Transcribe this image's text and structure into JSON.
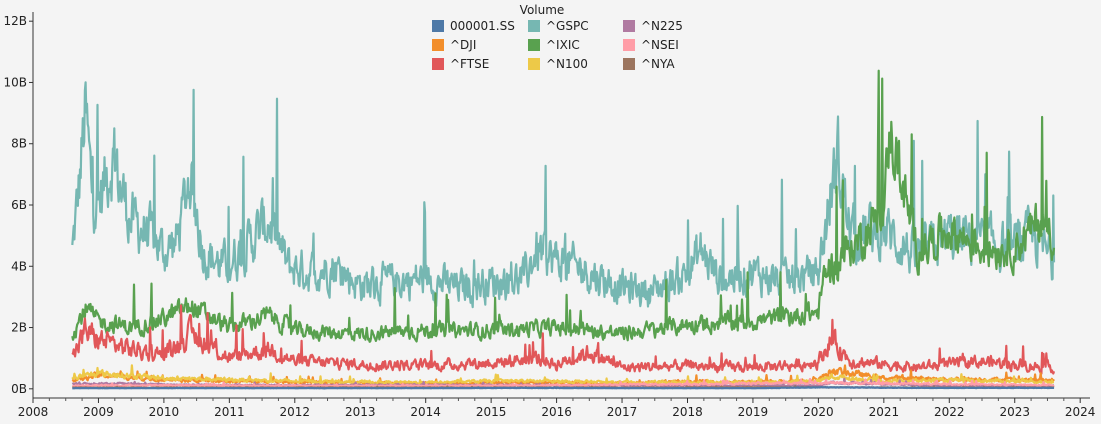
{
  "chart_data": {
    "type": "line",
    "title": "",
    "xlabel": "",
    "ylabel": "",
    "x_ticks": [
      "2008",
      "2009",
      "2010",
      "2011",
      "2012",
      "2013",
      "2014",
      "2015",
      "2016",
      "2017",
      "2018",
      "2019",
      "2020",
      "2021",
      "2022",
      "2023",
      "2024"
    ],
    "xlim": [
      2008.0,
      2024.15
    ],
    "y_ticks": [
      {
        "value": 0,
        "label": "0B"
      },
      {
        "value": 2,
        "label": "2B"
      },
      {
        "value": 4,
        "label": "4B"
      },
      {
        "value": 6,
        "label": "6B"
      },
      {
        "value": 8,
        "label": "8B"
      },
      {
        "value": 10,
        "label": "10B"
      },
      {
        "value": 12,
        "label": "12B"
      }
    ],
    "ylim": [
      -0.3,
      12.3
    ],
    "grid": false,
    "legend": {
      "title": "Volume",
      "placement": "top-center",
      "columns": 3
    },
    "series": [
      {
        "name": "000001.SS",
        "color": "#4e79a7",
        "x": [
          2008.6,
          2010,
          2012,
          2014,
          2015.5,
          2017,
          2019,
          2020.2,
          2021.5,
          2023.6
        ],
        "values": [
          0.02,
          0.02,
          0.02,
          0.02,
          0.03,
          0.02,
          0.02,
          0.05,
          0.03,
          0.03
        ]
      },
      {
        "name": "^DJI",
        "color": "#f28e2b",
        "x": [
          2008.6,
          2009,
          2010,
          2011,
          2012,
          2013,
          2014,
          2015,
          2016,
          2017,
          2018,
          2019,
          2020,
          2020.2,
          2021,
          2022,
          2023,
          2023.6
        ],
        "values": [
          0.25,
          0.45,
          0.3,
          0.25,
          0.22,
          0.2,
          0.18,
          0.2,
          0.22,
          0.18,
          0.24,
          0.22,
          0.3,
          0.6,
          0.35,
          0.32,
          0.3,
          0.28
        ]
      },
      {
        "name": "^FTSE",
        "color": "#e15759",
        "x": [
          2008.6,
          2008.8,
          2009,
          2009.5,
          2010,
          2010.4,
          2011,
          2011.6,
          2012,
          2013,
          2014,
          2015,
          2015.7,
          2016,
          2016.5,
          2017,
          2018,
          2019,
          2019.8,
          2020,
          2020.2,
          2020.5,
          2021,
          2021.5,
          2022,
          2022.5,
          2023,
          2023.6
        ],
        "values": [
          1.0,
          1.9,
          1.6,
          1.3,
          1.1,
          1.8,
          1.0,
          1.3,
          0.9,
          0.8,
          0.75,
          0.85,
          1.0,
          0.8,
          1.2,
          0.7,
          0.75,
          0.7,
          0.8,
          0.9,
          1.6,
          0.9,
          0.8,
          0.7,
          0.8,
          0.9,
          0.8,
          0.7
        ]
      },
      {
        "name": "^GSPC",
        "color": "#76b7b2",
        "x": [
          2008.6,
          2008.7,
          2008.8,
          2008.9,
          2009.0,
          2009.2,
          2009.5,
          2009.8,
          2010.0,
          2010.2,
          2010.4,
          2010.6,
          2010.9,
          2011.2,
          2011.6,
          2011.9,
          2012.2,
          2012.6,
          2013.0,
          2013.5,
          2014.0,
          2014.5,
          2015.0,
          2015.5,
          2015.7,
          2016.0,
          2016.5,
          2017.0,
          2017.5,
          2018.0,
          2018.2,
          2018.5,
          2019.0,
          2019.5,
          2020.0,
          2020.2,
          2020.3,
          2020.5,
          2021.0,
          2021.5,
          2022.0,
          2022.5,
          2023.0,
          2023.3,
          2023.6
        ],
        "values": [
          4.5,
          6.5,
          9.0,
          6.5,
          6.0,
          7.5,
          5.5,
          5.0,
          4.5,
          4.8,
          7.0,
          4.5,
          4.0,
          4.5,
          5.5,
          4.0,
          3.8,
          4.0,
          3.4,
          3.5,
          3.6,
          3.3,
          3.5,
          3.6,
          4.5,
          4.2,
          3.8,
          3.3,
          3.2,
          3.8,
          4.5,
          3.6,
          3.8,
          3.5,
          3.8,
          6.5,
          7.5,
          5.0,
          5.2,
          4.3,
          5.0,
          4.8,
          4.6,
          5.0,
          4.1
        ]
      },
      {
        "name": "^IXIC",
        "color": "#59a14f",
        "x": [
          2008.6,
          2008.8,
          2009.0,
          2009.5,
          2010.0,
          2010.4,
          2011.0,
          2011.6,
          2012.0,
          2013.0,
          2014.0,
          2015.0,
          2016.0,
          2017.0,
          2018.0,
          2019.0,
          2020.0,
          2020.1,
          2020.3,
          2020.6,
          2021.0,
          2021.1,
          2021.5,
          2022.0,
          2022.5,
          2023.0,
          2023.4,
          2023.6
        ],
        "values": [
          1.8,
          2.6,
          2.2,
          2.0,
          2.3,
          2.7,
          2.0,
          2.4,
          1.9,
          1.8,
          1.9,
          1.9,
          2.0,
          1.8,
          2.1,
          2.2,
          2.5,
          3.8,
          4.2,
          4.8,
          5.8,
          8.5,
          4.5,
          5.2,
          4.6,
          4.6,
          5.5,
          5.0
        ]
      },
      {
        "name": "^N100",
        "color": "#edc948",
        "x": [
          2008.6,
          2009,
          2010,
          2011,
          2012,
          2013,
          2014,
          2015,
          2016,
          2017,
          2018,
          2019,
          2020,
          2020.2,
          2021,
          2022,
          2023,
          2023.6
        ],
        "values": [
          0.35,
          0.5,
          0.35,
          0.3,
          0.25,
          0.22,
          0.2,
          0.25,
          0.25,
          0.2,
          0.22,
          0.2,
          0.25,
          0.4,
          0.25,
          0.28,
          0.25,
          0.22
        ]
      },
      {
        "name": "^N225",
        "color": "#b07aa1",
        "x": [
          2008.6,
          2009,
          2010,
          2012,
          2014,
          2016,
          2018,
          2020,
          2020.2,
          2022,
          2023.6
        ],
        "values": [
          0.15,
          0.18,
          0.14,
          0.12,
          0.13,
          0.12,
          0.1,
          0.11,
          0.2,
          0.1,
          0.1
        ]
      },
      {
        "name": "^NSEI",
        "color": "#ff9da7",
        "x": [
          2008.6,
          2010,
          2012,
          2014,
          2016,
          2018,
          2020,
          2022,
          2023.6
        ],
        "values": [
          0.1,
          0.12,
          0.1,
          0.1,
          0.12,
          0.15,
          0.2,
          0.15,
          0.12
        ]
      },
      {
        "name": "^NYA",
        "color": "#9c755f",
        "x": [
          2008.6,
          2010,
          2012,
          2014,
          2016,
          2018,
          2020,
          2022,
          2023.6
        ],
        "values": [
          0.04,
          0.04,
          0.04,
          0.04,
          0.04,
          0.04,
          0.05,
          0.04,
          0.04
        ]
      }
    ]
  }
}
